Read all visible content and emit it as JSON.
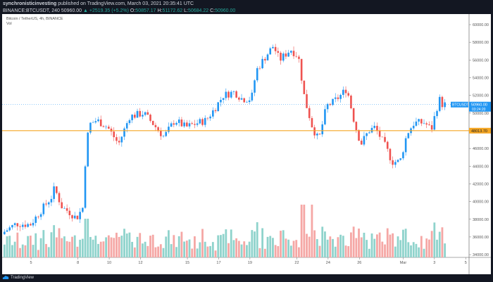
{
  "header": {
    "publisher": "synchronisticinvesting",
    "published_text": "published on TradingView.com, March 03, 2021 20:35:41 UTC",
    "symbol_line": "BINANCE:BTCUSDT, 240",
    "last": "50960.00",
    "change": "▲ +2519.35 (+5.2%)",
    "o_label": "O:",
    "o": "50857.17",
    "h_label": "H:",
    "h": "51172.62",
    "l_label": "L:",
    "l": "50684.22",
    "c_label": "C:",
    "c": "50960.00"
  },
  "chart_title": "Bitcoin / TetherUS, 4h, BINANCE",
  "vol_label": "Vol",
  "footer": {
    "brand": "TradingView"
  },
  "colors": {
    "up": "#2196f3",
    "down": "#ef5350",
    "vol_up": "#8fd3cc",
    "vol_down": "#f5a7a5",
    "hline": "#f5a623"
  },
  "chart_data": {
    "type": "candlestick",
    "symbol": "BTCUSDT",
    "interval": "4h",
    "ylim": [
      33000,
      61200
    ],
    "y_ticks": [
      "60000.00",
      "58000.00",
      "56000.00",
      "54000.00",
      "52000.00",
      "50000.00",
      "46000.00",
      "44000.00",
      "42000.00",
      "40000.00",
      "38000.00",
      "36000.00",
      "34000.00"
    ],
    "y_tick_values": [
      60000,
      58000,
      56000,
      54000,
      52000,
      50000,
      46000,
      44000,
      42000,
      40000,
      38000,
      36000,
      34000
    ],
    "x_ticks": [
      "5",
      "8",
      "10",
      "12",
      "15",
      "17",
      "19",
      "22",
      "24",
      "26",
      "Mar",
      "3",
      "5"
    ],
    "x_tick_days": [
      5,
      8,
      10,
      12,
      15,
      17,
      19,
      22,
      24,
      26,
      28.8,
      30.8,
      32.8
    ],
    "price_path_day_close": [
      [
        3.3,
        36600
      ],
      [
        4.05,
        37500
      ],
      [
        4.95,
        37400
      ],
      [
        5.6,
        38900
      ],
      [
        6.3,
        40500
      ],
      [
        6.5,
        41500
      ],
      [
        7.0,
        39300
      ],
      [
        7.4,
        38900
      ],
      [
        7.9,
        38100
      ],
      [
        8.3,
        39300
      ],
      [
        8.55,
        46900
      ],
      [
        8.8,
        48800
      ],
      [
        9.2,
        49200
      ],
      [
        9.9,
        48400
      ],
      [
        10.6,
        46500
      ],
      [
        11.3,
        49600
      ],
      [
        12.2,
        50000
      ],
      [
        12.8,
        48800
      ],
      [
        13.5,
        47300
      ],
      [
        14.2,
        49200
      ],
      [
        14.9,
        48400
      ],
      [
        15.5,
        48800
      ],
      [
        16.2,
        49200
      ],
      [
        16.7,
        50400
      ],
      [
        17.3,
        52000
      ],
      [
        18.0,
        52400
      ],
      [
        18.5,
        51600
      ],
      [
        19.1,
        51600
      ],
      [
        19.4,
        54800
      ],
      [
        20.0,
        56400
      ],
      [
        20.5,
        57600
      ],
      [
        20.9,
        56000
      ],
      [
        21.6,
        57200
      ],
      [
        22.1,
        56400
      ],
      [
        22.5,
        51600
      ],
      [
        23.0,
        48400
      ],
      [
        23.4,
        46900
      ],
      [
        23.9,
        50800
      ],
      [
        24.3,
        51200
      ],
      [
        24.8,
        52000
      ],
      [
        25.2,
        52800
      ],
      [
        25.7,
        48800
      ],
      [
        26.1,
        46500
      ],
      [
        26.6,
        48000
      ],
      [
        27.0,
        48400
      ],
      [
        27.7,
        46100
      ],
      [
        28.1,
        44500
      ],
      [
        28.6,
        44500
      ],
      [
        29.05,
        47700
      ],
      [
        29.5,
        48900
      ],
      [
        30.2,
        48900
      ],
      [
        30.6,
        48100
      ],
      [
        31.1,
        51600
      ],
      [
        31.3,
        51000
      ],
      [
        31.5,
        50960
      ]
    ],
    "horizontal_line": {
      "value": 48013.7,
      "label": "48013.70"
    },
    "last_price": {
      "symbol_label": "BTCUSDT",
      "value": 50960.0,
      "label": "50960.00",
      "countdown": "03:24:20"
    }
  }
}
